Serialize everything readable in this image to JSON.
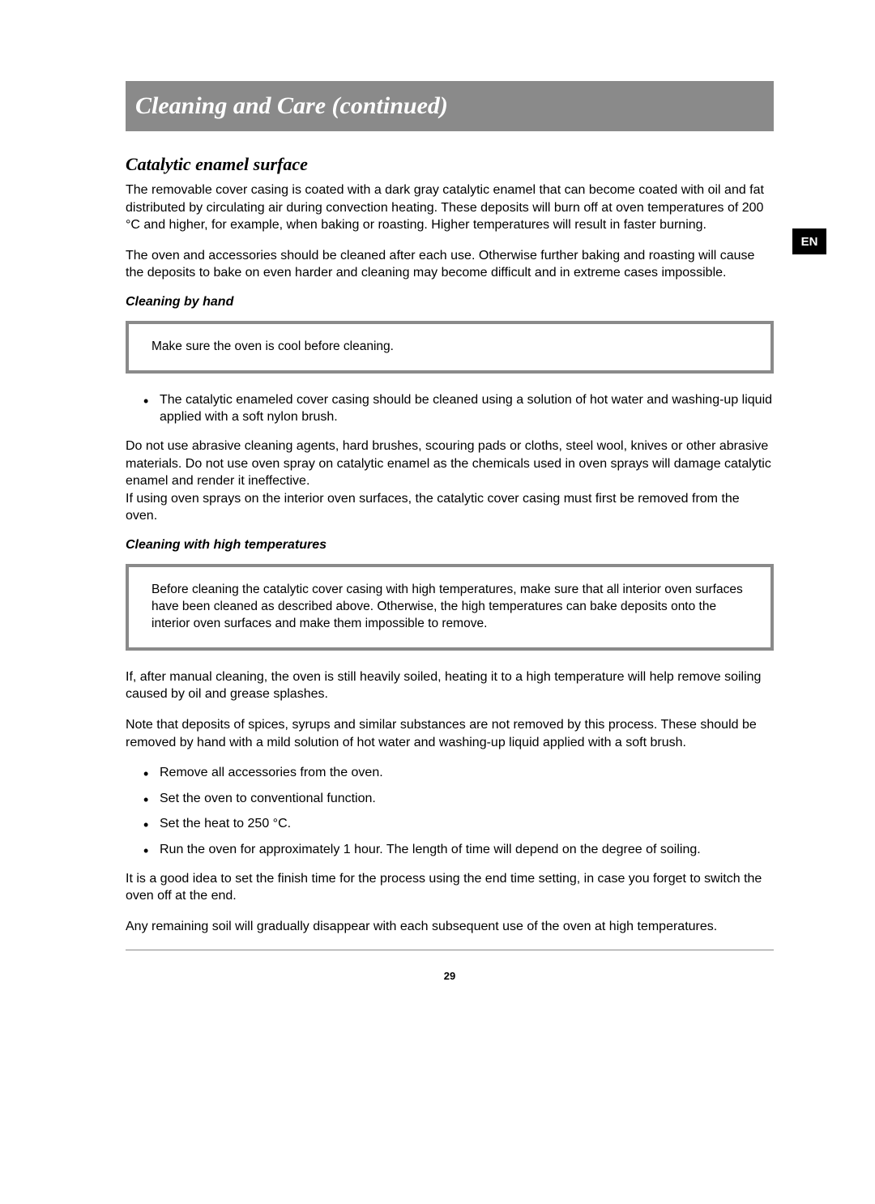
{
  "header": {
    "title": "Cleaning and Care (continued)",
    "bar_bg": "#8a8a8a",
    "title_color": "#ffffff",
    "title_fontsize": 30
  },
  "lang_badge": {
    "text": "EN",
    "bg": "#000000",
    "color": "#ffffff"
  },
  "section": {
    "heading": "Catalytic enamel surface",
    "para1": "The removable cover casing is coated with a dark gray catalytic enamel that can become coated with oil and fat distributed by circulating air during convection heating. These deposits will burn off at oven temperatures of 200 °C and higher, for example, when baking or roasting. Higher temperatures will result in faster burning.",
    "para2": " The oven and accessories should be cleaned after each use. Otherwise further baking and roasting will cause the deposits to bake on even harder and cleaning may become difficult and in extreme cases impossible."
  },
  "byhand": {
    "heading": "Cleaning by hand",
    "callout": "Make sure the oven is cool before cleaning.",
    "bullets": [
      "The catalytic enameled cover casing should be cleaned using a solution of hot water and washing-up liquid applied with a soft nylon brush."
    ],
    "para_after": "Do not use abrasive cleaning agents, hard brushes, scouring pads or cloths, steel wool, knives or other abrasive materials. Do not use oven spray on catalytic enamel as the chemicals used in oven sprays will damage catalytic enamel and render it ineffective.\nIf using oven sprays on the interior oven surfaces, the catalytic cover casing must first be removed from the oven."
  },
  "hightemp": {
    "heading": "Cleaning with high temperatures",
    "callout": "Before cleaning the catalytic cover casing with high temperatures, make sure that all interior oven surfaces have been cleaned as described above. Otherwise, the high temperatures can bake deposits onto the interior oven surfaces and make them impossible to remove.",
    "para1": "If, after manual cleaning, the oven is still heavily soiled, heating it to a high temperature will help remove soiling caused by oil and grease splashes.",
    "para2": "Note that deposits of spices, syrups and similar substances are not removed by this process. These should be removed by hand with a mild solution of hot water and washing-up liquid applied with a soft brush.",
    "bullets": [
      "Remove all accessories from the oven.",
      "Set the oven to conventional function.",
      "Set the heat to 250 °C.",
      "Run the oven for approximately 1 hour. The length of time will depend on the degree of soiling."
    ],
    "para3": "It is a good idea to set the finish time for the process using the end time setting, in case you forget to switch the oven off at the end.",
    "para4": "Any remaining soil will gradually disappear with each subsequent use of the oven at high temperatures."
  },
  "page_number": "29",
  "colors": {
    "text": "#000000",
    "page_bg": "#ffffff",
    "callout_border": "#8a8a8a"
  }
}
